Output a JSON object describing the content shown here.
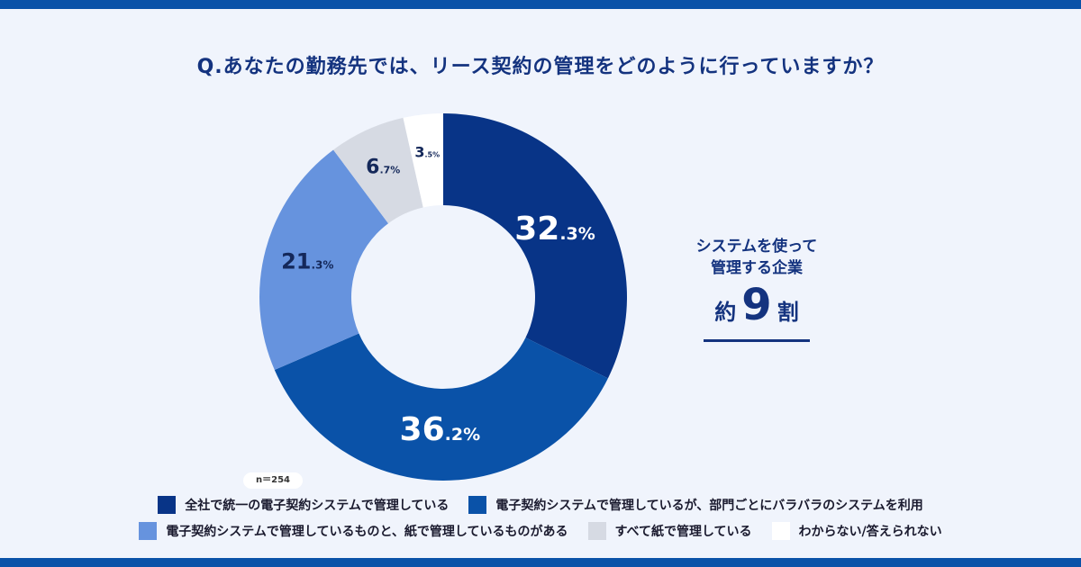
{
  "colors": {
    "background": "#f0f4fc",
    "frame": "#0a52a8",
    "accent": "#14337f",
    "series": [
      "#083487",
      "#0a52a8",
      "#6693de",
      "#d6dae3",
      "#ffffff"
    ],
    "label_light": "#ffffff",
    "label_dark": "#14285a"
  },
  "question": "Q.あなたの勤務先では、リース契約の管理をどのように行っていますか？",
  "sample_size": "n＝254",
  "callout": {
    "line1": "システムを使って",
    "line2": "管理する企業",
    "prefix": "約",
    "number": "9",
    "suffix": "割"
  },
  "chart_data": {
    "type": "pie",
    "variant": "donut",
    "title": "Q.あなたの勤務先では、リース契約の管理をどのように行っていますか？",
    "unit": "%",
    "n": 254,
    "categories": [
      "全社で統一の電子契約システムで管理している",
      "電子契約システムで管理しているが、部門ごとにバラバラのシステムを利用",
      "電子契約システムで管理しているものと、紙で管理しているものがある",
      "すべて紙で管理している",
      "わからない/答えられない"
    ],
    "values": [
      32.3,
      36.2,
      21.3,
      6.7,
      3.5
    ],
    "value_labels": [
      {
        "int": "32",
        "dec": ".3",
        "pct": "%"
      },
      {
        "int": "36",
        "dec": ".2",
        "pct": "%"
      },
      {
        "int": "21",
        "dec": ".3",
        "pct": "%"
      },
      {
        "int": "6",
        "dec": ".7",
        "pct": "%"
      },
      {
        "int": "3",
        "dec": ".5",
        "pct": "%"
      }
    ],
    "start": "top",
    "direction": "clockwise",
    "legend_position": "bottom"
  }
}
